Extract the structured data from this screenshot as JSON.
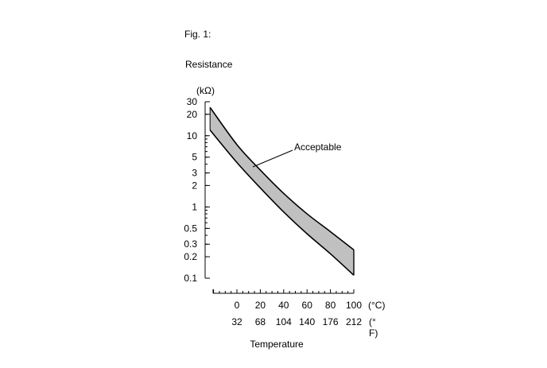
{
  "figure": {
    "caption": "Fig. 1:"
  },
  "chart_data": {
    "type": "area",
    "title": "",
    "ylabel": "Resistance",
    "yunit": "(kΩ)",
    "xlabel": "Temperature",
    "yscale": "log",
    "ylim": [
      0.1,
      30
    ],
    "xlim": [
      -20,
      100
    ],
    "yticks": [
      30,
      20,
      10,
      5,
      3,
      2,
      1,
      0.5,
      0.3,
      0.2,
      0.1
    ],
    "ytick_labels": [
      "30",
      "20",
      "10",
      "5",
      "3",
      "2",
      "1",
      "0.5",
      "0.3",
      "0.2",
      "0.1"
    ],
    "xticks_c": [
      0,
      20,
      40,
      60,
      80,
      100
    ],
    "xtick_labels_c": [
      "0",
      "20",
      "40",
      "60",
      "80",
      "100"
    ],
    "xunit_c": "(°C)",
    "xtick_labels_f": [
      "32",
      "68",
      "104",
      "140",
      "176",
      "212"
    ],
    "xunit_f": "(°F)",
    "band_label": "Acceptable",
    "upper": {
      "x": [
        -23,
        0,
        20,
        40,
        60,
        80,
        100
      ],
      "y": [
        25,
        7.5,
        3.3,
        1.55,
        0.8,
        0.45,
        0.25
      ]
    },
    "lower": {
      "x": [
        -23,
        0,
        20,
        40,
        60,
        80,
        100
      ],
      "y": [
        12,
        4.2,
        1.85,
        0.85,
        0.42,
        0.22,
        0.11
      ]
    },
    "band_color": "#c0c0c0",
    "grid": false
  }
}
